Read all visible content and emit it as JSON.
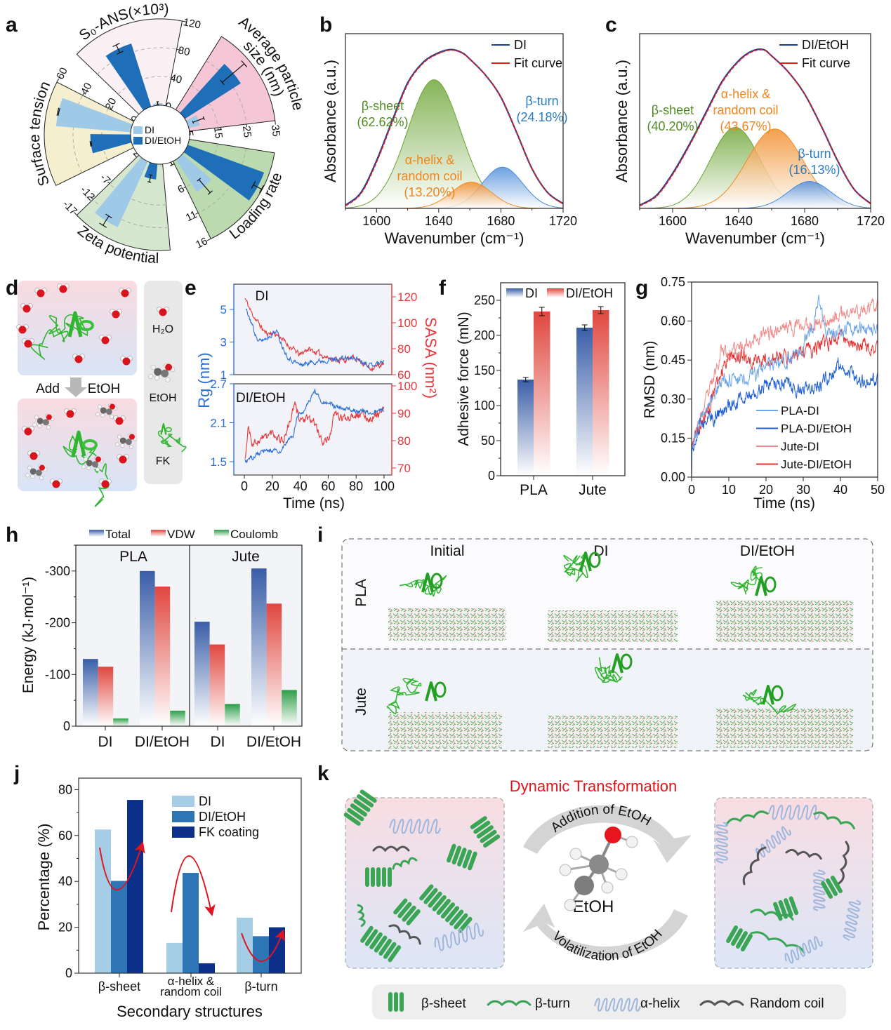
{
  "panel_labels": {
    "a": "a",
    "b": "b",
    "c": "c",
    "d": "d",
    "e": "e",
    "f": "f",
    "g": "g",
    "h": "h",
    "i": "i",
    "j": "j",
    "k": "k"
  },
  "panel_d": {
    "add": "Add",
    "etoh": "EtOH",
    "side_labels": [
      "H₂O",
      "EtOH",
      "FK"
    ]
  },
  "panel_i": {
    "columns": [
      "Initial",
      "DI",
      "DI/EtOH"
    ],
    "rows": [
      "PLA",
      "Jute"
    ]
  },
  "panel_k": {
    "title": "Dynamic Transformation",
    "top_arrow": "Addition of EtOH",
    "bottom_arrow": "Volatilization of EtOH",
    "molecule": "EtOH",
    "legend": [
      "β-sheet",
      "β-turn",
      "α-helix",
      "Random coil"
    ],
    "colors": {
      "title": "#e0141e",
      "sheet": "#3aa655",
      "turn": "#3aa655",
      "helix": "#9fb6dc",
      "coil": "#555555"
    }
  },
  "chart_data": [
    {
      "panel": "a",
      "type": "radial-bar",
      "legend": [
        "DI",
        "DI/EtOH"
      ],
      "legend_colors": [
        "#9ecae8",
        "#1f6fb8"
      ],
      "grid": "dashed",
      "axes": [
        {
          "label": [
            "S₀-ANS(×10³)"
          ],
          "range": [
            0,
            120
          ],
          "ticks": [
            0,
            40,
            80,
            120
          ],
          "values": {
            "DI": 3,
            "DI/EtOH": 92
          },
          "errors": {
            "DI": 2,
            "DI/EtOH": 6
          },
          "fill": "#fbf0f3"
        },
        {
          "label": [
            "Average particle",
            "size (nm)"
          ],
          "range": [
            5,
            35
          ],
          "ticks": [
            5,
            15,
            25,
            35
          ],
          "values": {
            "DI": 9,
            "DI/EtOH": 28
          },
          "errors": {
            "DI": 2,
            "DI/EtOH": 5
          },
          "fill": "#f5c6d6"
        },
        {
          "label": [
            "Loading rate"
          ],
          "range": [
            1,
            16
          ],
          "ticks": [
            1,
            6,
            11,
            16
          ],
          "values": {
            "DI": 7.7,
            "DI/EtOH": 15.1
          },
          "errors": {
            "DI": 1.5,
            "DI/EtOH": 0.8
          },
          "fill": "#bcdab0"
        },
        {
          "label": [
            "Zeta potential"
          ],
          "range": [
            2,
            -17
          ],
          "ticks": [
            2,
            -7,
            -12,
            -17
          ],
          "values": {
            "DI": -13.9,
            "DI/EtOH": -1.4
          },
          "errors": {
            "DI": 1.2,
            "DI/EtOH": 0.8
          },
          "fill": "#d6e7cf"
        },
        {
          "label": [
            "Surface tension"
          ],
          "range": [
            0,
            60
          ],
          "ticks": [
            0,
            20,
            40,
            60
          ],
          "values": {
            "DI": 52,
            "DI/EtOH": 28
          },
          "errors": {
            "DI": 0.4,
            "DI/EtOH": 0.4
          },
          "fill": "#f5efcf"
        }
      ]
    },
    {
      "panel": "b",
      "type": "line",
      "xlabel": "Wavenumber (cm⁻¹)",
      "ylabel": "Absorbance (a.u.)",
      "xlim": [
        1580,
        1720
      ],
      "ylim": [
        0,
        1.1
      ],
      "xticks": [
        1600,
        1640,
        1680,
        1720
      ],
      "x": [
        1580,
        1590,
        1600,
        1610,
        1620,
        1630,
        1640,
        1648,
        1655,
        1660,
        1670,
        1680,
        1690,
        1700,
        1710,
        1720
      ],
      "series": [
        {
          "name": "DI",
          "color": "#1f3f9a",
          "y": [
            0.02,
            0.1,
            0.3,
            0.55,
            0.79,
            0.92,
            0.98,
            1.0,
            0.98,
            0.94,
            0.84,
            0.7,
            0.48,
            0.25,
            0.1,
            0.03
          ]
        },
        {
          "name": "Fit curve",
          "color": "#e0201b",
          "y": [
            0.02,
            0.1,
            0.3,
            0.55,
            0.79,
            0.92,
            0.98,
            1.0,
            0.98,
            0.94,
            0.84,
            0.7,
            0.48,
            0.25,
            0.1,
            0.03
          ]
        }
      ],
      "components": [
        {
          "label": [
            "β-sheet",
            "(62.62%)"
          ],
          "center": 1637,
          "amplitude": 0.81,
          "sigma": 17,
          "color": "#6aa332",
          "text_color": "#4f8a22"
        },
        {
          "label": [
            "β-turn",
            "(24.18%)"
          ],
          "center": 1681,
          "amplitude": 0.26,
          "sigma": 13,
          "color": "#4a8ad8",
          "text_color": "#2b7cc0"
        },
        {
          "label": [
            "α-helix &",
            "random coil",
            "(13.20%)"
          ],
          "center": 1661,
          "amplitude": 0.165,
          "sigma": 13,
          "color": "#f08a24",
          "text_color": "#f0841a"
        }
      ]
    },
    {
      "panel": "c",
      "type": "line",
      "xlabel": "Wavenumber (cm⁻¹)",
      "ylabel": "Absorbance (a.u.)",
      "xlim": [
        1580,
        1720
      ],
      "ylim": [
        0,
        1.1
      ],
      "xticks": [
        1600,
        1640,
        1680,
        1720
      ],
      "x": [
        1580,
        1590,
        1600,
        1610,
        1620,
        1630,
        1640,
        1648,
        1655,
        1660,
        1670,
        1680,
        1690,
        1700,
        1710,
        1720
      ],
      "series": [
        {
          "name": "DI/EtOH",
          "color": "#1f3f9a",
          "y": [
            0.02,
            0.08,
            0.22,
            0.4,
            0.6,
            0.8,
            0.93,
            0.99,
            1.0,
            0.96,
            0.86,
            0.72,
            0.52,
            0.3,
            0.12,
            0.03
          ]
        },
        {
          "name": "Fit curve",
          "color": "#e0201b",
          "y": [
            0.02,
            0.08,
            0.22,
            0.4,
            0.6,
            0.8,
            0.93,
            0.99,
            1.0,
            0.96,
            0.86,
            0.72,
            0.52,
            0.3,
            0.12,
            0.03
          ]
        }
      ],
      "components": [
        {
          "label": [
            "β-sheet",
            "(40.20%)"
          ],
          "center": 1638,
          "amplitude": 0.51,
          "sigma": 15,
          "color": "#6aa332",
          "text_color": "#4f8a22"
        },
        {
          "label": [
            "α-helix &",
            "random coil",
            "(43.67%)"
          ],
          "center": 1662,
          "amplitude": 0.5,
          "sigma": 17,
          "color": "#f08a24",
          "text_color": "#f0841a"
        },
        {
          "label": [
            "β-turn",
            "(16.13%)"
          ],
          "center": 1683,
          "amplitude": 0.17,
          "sigma": 13,
          "color": "#4a8ad8",
          "text_color": "#2b7cc0"
        }
      ]
    },
    {
      "panel": "e",
      "type": "line",
      "xlabel": "Time (ns)",
      "ylabel_left": "Rg (nm)",
      "ylabel_right": "SASA (nm²)",
      "left_color": "#2b6fd6",
      "right_color": "#e8373a",
      "xlim": [
        0,
        100
      ],
      "xticks": [
        0,
        20,
        40,
        60,
        80,
        100
      ],
      "subplots": [
        {
          "label": "DI",
          "rg_ticks": [
            1,
            3,
            5
          ],
          "sasa_ticks": [
            60,
            80,
            100,
            120
          ],
          "rg": {
            "x": [
              1,
              5,
              10,
              15,
              20,
              23,
              28,
              32,
              40,
              50,
              60,
              70,
              80,
              90,
              100
            ],
            "y": [
              5.0,
              4.2,
              3.0,
              3.2,
              3.5,
              3.7,
              2.6,
              2.0,
              1.6,
              1.8,
              1.9,
              2.0,
              2.0,
              1.6,
              1.8
            ]
          },
          "sasa": {
            "x": [
              0,
              5,
              10,
              15,
              20,
              25,
              30,
              40,
              45,
              50,
              60,
              70,
              80,
              90,
              100
            ],
            "y": [
              120,
              108,
              100,
              92,
              92,
              90,
              84,
              75,
              80,
              78,
              73,
              71,
              73,
              65,
              68
            ]
          }
        },
        {
          "label": "DI/EtOH",
          "rg_ticks": [
            1.5,
            2.1,
            2.7
          ],
          "sasa_ticks": [
            70,
            80,
            90,
            100
          ],
          "rg": {
            "x": [
              0,
              5,
              10,
              20,
              25,
              30,
              35,
              38,
              45,
              50,
              55,
              60,
              70,
              80,
              90,
              100
            ],
            "y": [
              1.5,
              1.55,
              1.62,
              1.68,
              1.62,
              1.8,
              1.9,
              2.2,
              2.35,
              2.6,
              2.45,
              2.4,
              2.3,
              2.3,
              2.25,
              2.3
            ]
          },
          "sasa": {
            "x": [
              0,
              3,
              6,
              10,
              20,
              28,
              32,
              36,
              40,
              50,
              55,
              60,
              65,
              70,
              80,
              90,
              100
            ],
            "y": [
              72,
              85,
              79,
              80,
              83,
              80,
              86,
              93,
              88,
              87,
              80,
              80,
              90,
              88,
              90,
              88,
              91
            ]
          }
        }
      ]
    },
    {
      "panel": "f",
      "type": "bar",
      "ylabel": "Adhesive force (mN)",
      "ylim": [
        0,
        275
      ],
      "yticks": [
        0,
        50,
        100,
        150,
        200,
        250
      ],
      "categories": [
        "PLA",
        "Jute"
      ],
      "series": [
        {
          "name": "DI",
          "values": [
            137,
            211
          ],
          "errors": [
            3,
            4
          ],
          "color": "#3a5ea8"
        },
        {
          "name": "DI/EtOH",
          "values": [
            234,
            236
          ],
          "errors": [
            6,
            5
          ],
          "color": "#e0473f"
        }
      ]
    },
    {
      "panel": "g",
      "type": "line",
      "xlabel": "Time (ns)",
      "ylabel": "RMSD (nm)",
      "xlim": [
        0,
        50
      ],
      "ylim": [
        0,
        0.75
      ],
      "xticks": [
        0,
        10,
        20,
        30,
        40,
        50
      ],
      "yticks": [
        "0.00",
        "0.15",
        "0.30",
        "0.45",
        "0.60",
        "0.75"
      ],
      "series": [
        {
          "name": "PLA-DI",
          "color": "#6ea6ea",
          "x": [
            0,
            2,
            5,
            8,
            10,
            15,
            20,
            25,
            30,
            33,
            34,
            36,
            40,
            45,
            50
          ],
          "y": [
            0.1,
            0.22,
            0.3,
            0.36,
            0.38,
            0.38,
            0.42,
            0.44,
            0.5,
            0.6,
            0.7,
            0.55,
            0.55,
            0.58,
            0.57
          ]
        },
        {
          "name": "PLA-DI/EtOH",
          "color": "#1f5fd6",
          "x": [
            0,
            2,
            5,
            8,
            10,
            15,
            20,
            25,
            30,
            35,
            40,
            45,
            50
          ],
          "y": [
            0.1,
            0.2,
            0.22,
            0.25,
            0.27,
            0.32,
            0.36,
            0.36,
            0.33,
            0.36,
            0.44,
            0.38,
            0.37
          ]
        },
        {
          "name": "Jute-DI",
          "color": "#f08a8a",
          "x": [
            0,
            3,
            6,
            8,
            10,
            15,
            20,
            25,
            30,
            35,
            40,
            45,
            50
          ],
          "y": [
            0.12,
            0.25,
            0.38,
            0.5,
            0.47,
            0.52,
            0.55,
            0.58,
            0.58,
            0.6,
            0.62,
            0.64,
            0.65
          ]
        },
        {
          "name": "Jute-DI/EtOH",
          "color": "#e83030",
          "x": [
            0,
            3,
            6,
            8,
            10,
            15,
            20,
            25,
            30,
            35,
            40,
            45,
            50
          ],
          "y": [
            0.12,
            0.22,
            0.32,
            0.4,
            0.48,
            0.45,
            0.45,
            0.46,
            0.48,
            0.5,
            0.55,
            0.5,
            0.48
          ]
        }
      ]
    },
    {
      "panel": "h",
      "type": "bar",
      "ylabel": "Energy (kJ·mol⁻¹)",
      "ylim": [
        0,
        -350
      ],
      "yticks": [
        0,
        -100,
        -200,
        -300
      ],
      "groups": [
        "PLA",
        "Jute"
      ],
      "categories": [
        "DI",
        "DI/EtOH",
        "DI",
        "DI/EtOH"
      ],
      "series": [
        {
          "name": "Total",
          "color": "#3a5ea8",
          "values": [
            -130,
            -300,
            -202,
            -305
          ]
        },
        {
          "name": "VDW",
          "color": "#e0473f",
          "values": [
            -115,
            -270,
            -158,
            -237
          ]
        },
        {
          "name": "Coulomb",
          "color": "#2e9e4a",
          "values": [
            -15,
            -30,
            -43,
            -70
          ]
        }
      ]
    },
    {
      "panel": "j",
      "type": "bar",
      "xlabel": "Secondary structures",
      "ylabel": "Percentage (%)",
      "ylim": [
        0,
        85
      ],
      "yticks": [
        0,
        20,
        40,
        60,
        80
      ],
      "categories": [
        [
          "β-sheet"
        ],
        [
          "α-helix &",
          "random coil"
        ],
        [
          "β-turn"
        ]
      ],
      "series": [
        {
          "name": "DI",
          "color": "#a6cde6",
          "values": [
            62.6,
            13.2,
            24.2
          ]
        },
        {
          "name": "DI/EtOH",
          "color": "#2e75b6",
          "values": [
            40.2,
            43.7,
            16.1
          ]
        },
        {
          "name": "FK coating",
          "color": "#0c2f8a",
          "values": [
            75.5,
            4.3,
            20.0
          ]
        }
      ],
      "trend_arrow_color": "#e0141e"
    }
  ]
}
